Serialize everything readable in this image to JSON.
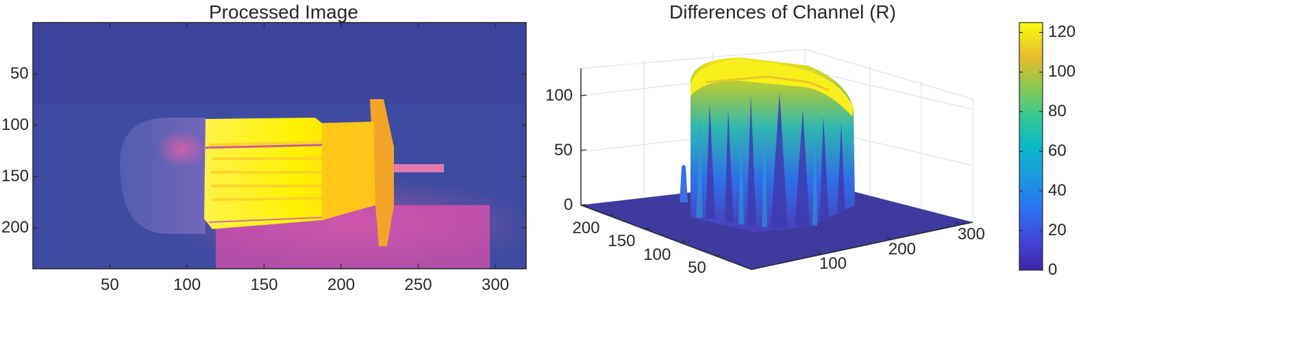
{
  "chart_data": [
    {
      "type": "heatmap",
      "title": "Processed Image",
      "x_ticks": [
        "50",
        "100",
        "150",
        "200",
        "250",
        "300"
      ],
      "y_ticks": [
        "50",
        "100",
        "150",
        "200"
      ],
      "x_tick_values": [
        50,
        100,
        150,
        200,
        250,
        300
      ],
      "y_tick_values": [
        50,
        100,
        150,
        200
      ],
      "xlim": [
        0,
        320
      ],
      "ylim": [
        0,
        240
      ],
      "y_reversed": true,
      "colormap": "thermal (dark blue → magenta → orange → yellow)",
      "colors": {
        "background": "#3f4b9e",
        "hot": "#fff200",
        "warm": "#ffb020",
        "mid": "#d04fb0"
      }
    },
    {
      "type": "surface3d",
      "title": "Differences of Channel (R)",
      "z_ticks": [
        "0",
        "50",
        "100"
      ],
      "z_tick_values": [
        0,
        50,
        100
      ],
      "x_ticks": [
        "100",
        "200",
        "300"
      ],
      "x_tick_values": [
        100,
        200,
        300
      ],
      "y_ticks": [
        "50",
        "100",
        "150",
        "200"
      ],
      "y_tick_values": [
        50,
        100,
        150,
        200
      ],
      "zlim": [
        0,
        125
      ],
      "colorbar": {
        "ticks": [
          "0",
          "20",
          "40",
          "60",
          "80",
          "100",
          "120"
        ],
        "tick_values": [
          0,
          20,
          40,
          60,
          80,
          100,
          120
        ],
        "range": [
          0,
          125
        ],
        "colormap": "parula"
      }
    }
  ]
}
